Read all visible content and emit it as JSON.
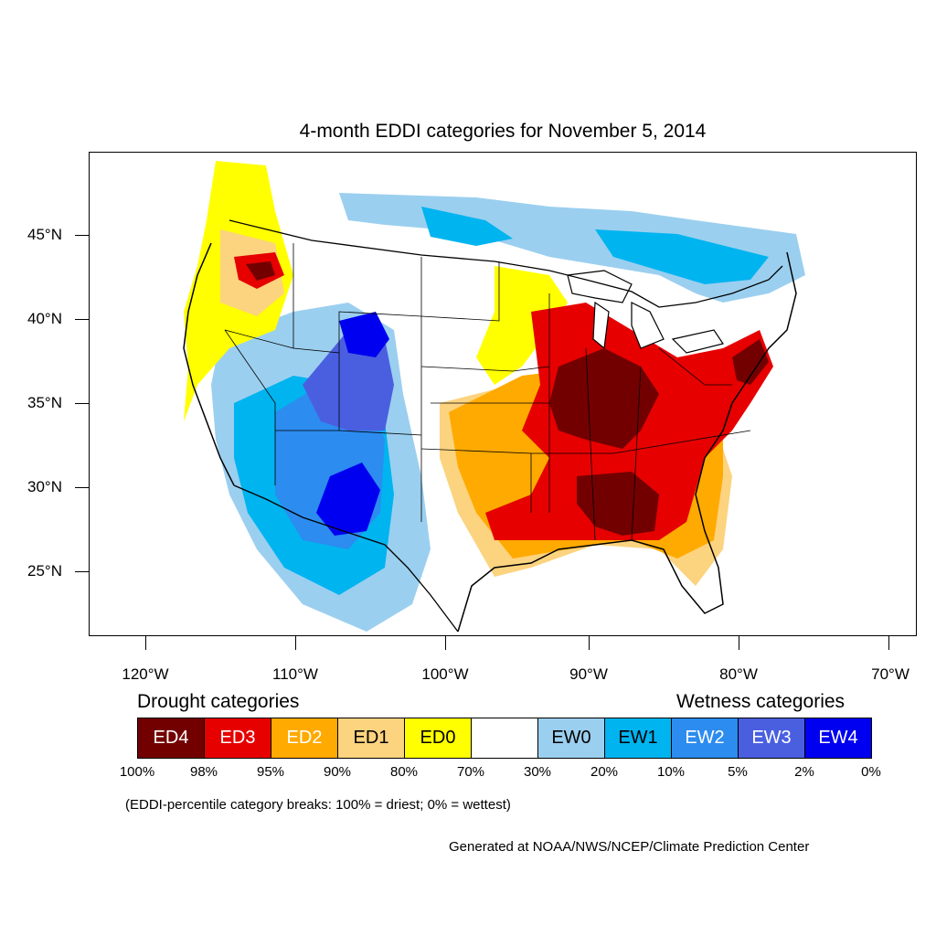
{
  "title": "4-month EDDI categories for November 5, 2014",
  "axes": {
    "y_labels": [
      "45°N",
      "40°N",
      "35°N",
      "30°N",
      "25°N"
    ],
    "x_labels": [
      "120°W",
      "110°W",
      "100°W",
      "90°W",
      "80°W",
      "70°W"
    ]
  },
  "legend": {
    "drought_heading": "Drought categories",
    "wetness_heading": "Wetness categories",
    "categories": [
      {
        "label": "ED4",
        "color": "#730000",
        "text_color": "#ffffff"
      },
      {
        "label": "ED3",
        "color": "#e60000",
        "text_color": "#ffffff"
      },
      {
        "label": "ED2",
        "color": "#ffaa00",
        "text_color": "#ffffff"
      },
      {
        "label": "ED1",
        "color": "#fcd37f",
        "text_color": "#000000"
      },
      {
        "label": "ED0",
        "color": "#ffff00",
        "text_color": "#000000"
      },
      {
        "label": "",
        "color": "#ffffff",
        "text_color": "#000000"
      },
      {
        "label": "EW0",
        "color": "#9bcfef",
        "text_color": "#000000"
      },
      {
        "label": "EW1",
        "color": "#00b4f0",
        "text_color": "#000000"
      },
      {
        "label": "EW2",
        "color": "#2c8cf0",
        "text_color": "#ffffff"
      },
      {
        "label": "EW3",
        "color": "#4a5fe0",
        "text_color": "#ffffff"
      },
      {
        "label": "EW4",
        "color": "#0000f0",
        "text_color": "#ffffff"
      }
    ],
    "breaks": [
      "100%",
      "98%",
      "95%",
      "90%",
      "80%",
      "70%",
      "30%",
      "20%",
      "10%",
      "5%",
      "2%",
      "0%"
    ],
    "note": "(EDDI-percentile category breaks: 100% = driest; 0% = wettest)"
  },
  "credit": "Generated at NOAA/NWS/NCEP/Climate Prediction Center"
}
